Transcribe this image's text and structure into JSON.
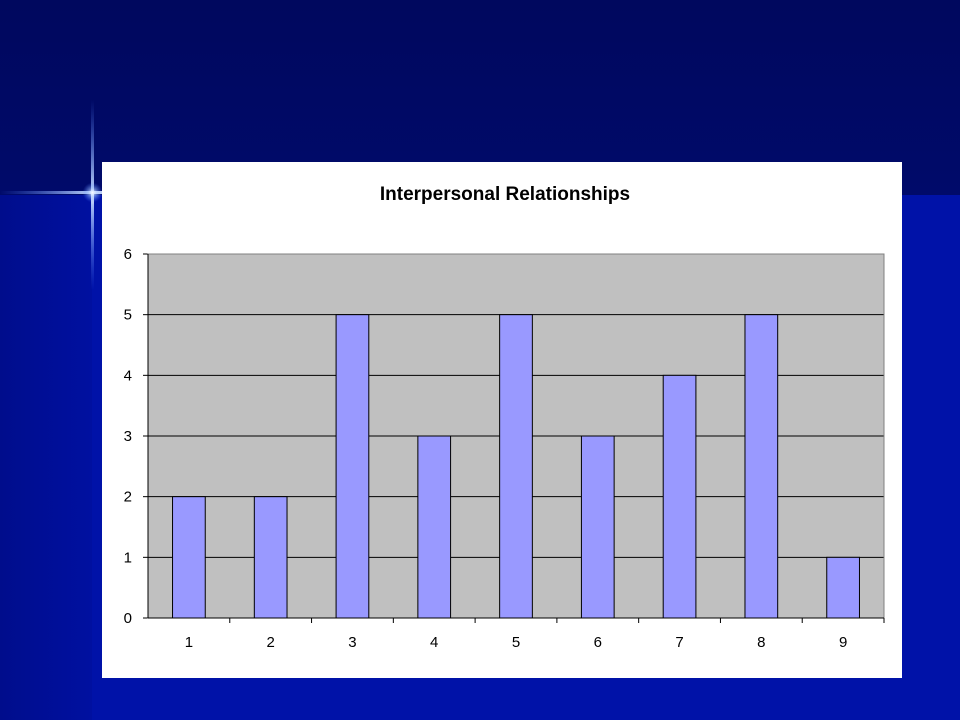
{
  "colors": {
    "background": "#000a6e",
    "plot_area": "#c0c0c0",
    "bar_fill": "#9999ff",
    "bar_stroke": "#000000",
    "chart_frame": "#ffffff"
  },
  "chart_data": {
    "type": "bar",
    "title": "Interpersonal Relationships",
    "xlabel": "",
    "ylabel": "",
    "categories": [
      "1",
      "2",
      "3",
      "4",
      "5",
      "6",
      "7",
      "8",
      "9"
    ],
    "values": [
      2,
      2,
      5,
      3,
      5,
      3,
      4,
      5,
      1
    ],
    "ylim": [
      0,
      6
    ],
    "yticks": [
      "0",
      "1",
      "2",
      "3",
      "4",
      "5",
      "6"
    ],
    "grid": true,
    "legend": "none"
  }
}
